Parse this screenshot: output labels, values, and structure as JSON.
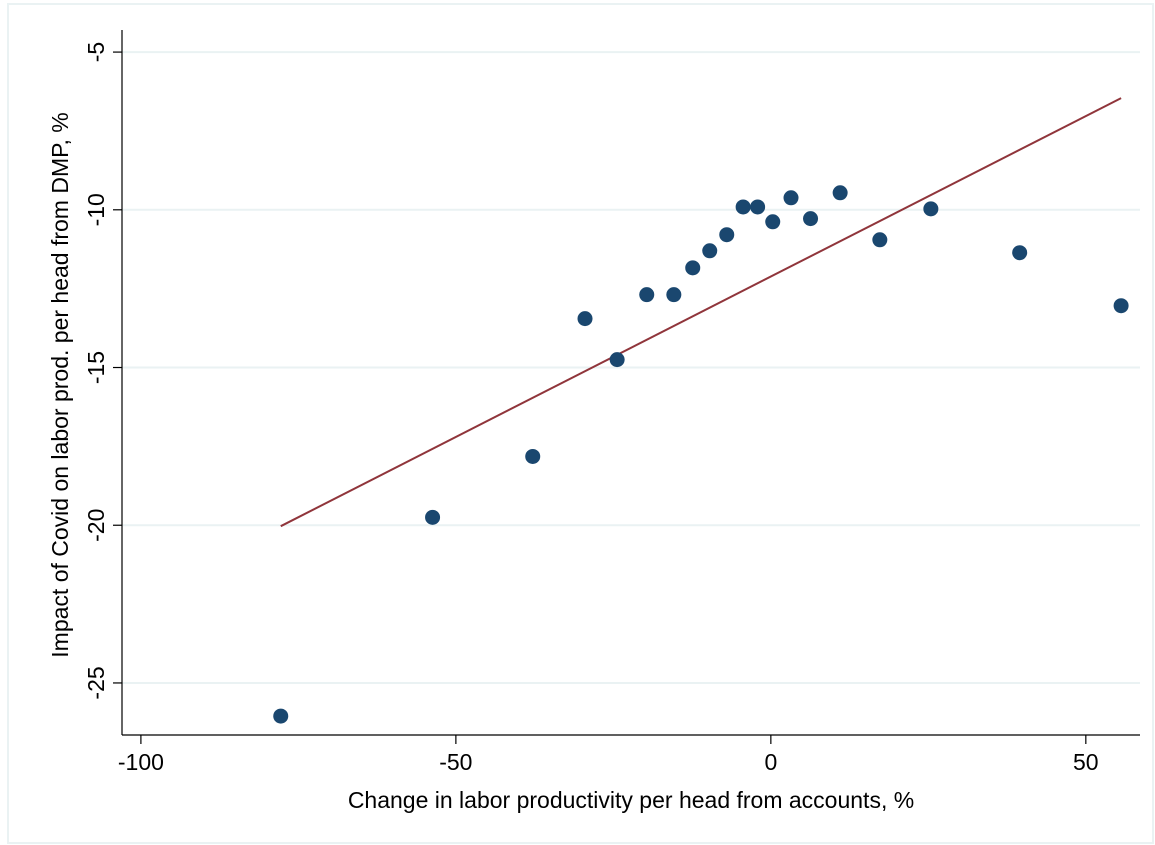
{
  "chart_data": {
    "type": "scatter",
    "x_label": "Change in labor productivity per head from accounts, %",
    "y_label": "Impact of Covid on labor prod. per head from DMP, %",
    "x": [
      -77.8,
      -53.7,
      -37.8,
      -29.5,
      -24.4,
      -19.7,
      -15.4,
      -12.4,
      -9.7,
      -7.0,
      -4.4,
      -2.1,
      0.3,
      3.2,
      6.3,
      11.0,
      17.3,
      25.4,
      39.5,
      55.6
    ],
    "series": [
      {
        "color": "#1a476f",
        "values": [
          -26.05,
          -19.75,
          -17.82,
          -13.45,
          -14.75,
          -12.69,
          -12.69,
          -11.84,
          -11.3,
          -10.79,
          -9.91,
          -9.91,
          -10.38,
          -9.62,
          -10.28,
          -9.46,
          -10.95,
          -9.97,
          -11.36,
          -13.04
        ]
      }
    ],
    "fit_line": {
      "color": "#90353b",
      "x": [
        -77.8,
        55.6
      ],
      "values": [
        -20.03,
        -6.46
      ]
    },
    "xlim": [
      -103,
      58.6
    ],
    "ylim": [
      -26.65,
      -4.3
    ],
    "xticks": [
      -100,
      -50,
      0,
      50
    ],
    "yticks": [
      -25,
      -20,
      -15,
      -10,
      -5
    ],
    "grid": true
  }
}
